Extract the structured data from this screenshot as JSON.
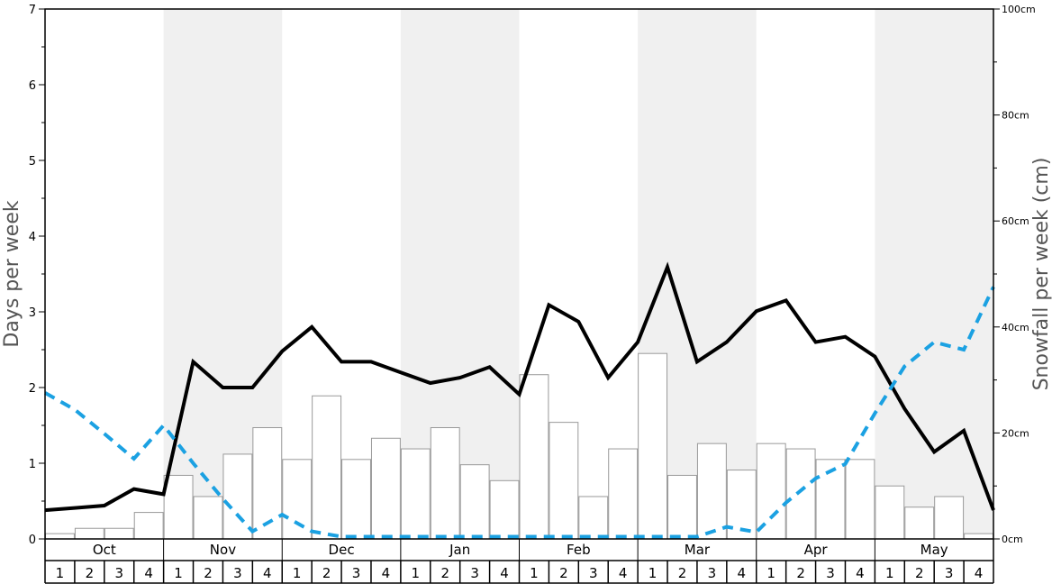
{
  "chart_data": {
    "type": "bar+line",
    "title": "",
    "ylabel": "Days per week",
    "ylabel_right": "Snowfall per week (cm)",
    "ylim": [
      0,
      7
    ],
    "ylim_right": [
      0,
      100
    ],
    "yticks": [
      "0",
      "1",
      "2",
      "3",
      "4",
      "5",
      "6",
      "7"
    ],
    "yticks_right": [
      "0cm",
      "20cm",
      "40cm",
      "60cm",
      "80cm",
      "100cm"
    ],
    "months": [
      "Oct",
      "Nov",
      "Dec",
      "Jan",
      "Feb",
      "Mar",
      "Apr",
      "May"
    ],
    "weeks": [
      "1",
      "2",
      "3",
      "4"
    ],
    "shaded_months": [
      "Nov",
      "Jan",
      "Mar",
      "May"
    ],
    "series": [
      {
        "kind": "bar",
        "axis": "right",
        "color": "#ffffff",
        "stroke": "#999999",
        "values": [
          1,
          2,
          2,
          5,
          12,
          8,
          16,
          21,
          15,
          27,
          15,
          19,
          17,
          21,
          14,
          11,
          31,
          22,
          8,
          17,
          35,
          12,
          18,
          13,
          18,
          17,
          15,
          15,
          10,
          6,
          8,
          1
        ]
      },
      {
        "kind": "line",
        "axis": "left",
        "color": "#000000",
        "style": "solid",
        "values": [
          0.38,
          0.41,
          0.44,
          0.66,
          0.59,
          2.34,
          2.0,
          2.0,
          2.48,
          2.8,
          2.34,
          2.34,
          2.2,
          2.06,
          2.13,
          2.27,
          1.91,
          3.09,
          2.87,
          2.13,
          2.6,
          3.59,
          2.34,
          2.6,
          3.01,
          3.15,
          2.6,
          2.67,
          2.41,
          1.72,
          1.15,
          1.43,
          0.38
        ]
      },
      {
        "kind": "line",
        "axis": "left",
        "color": "#1ba1e2",
        "style": "dashed",
        "values": [
          1.93,
          1.71,
          1.39,
          1.06,
          1.5,
          1.0,
          0.53,
          0.1,
          0.32,
          0.1,
          0.03,
          0.03,
          0.03,
          0.03,
          0.03,
          0.03,
          0.03,
          0.03,
          0.03,
          0.03,
          0.03,
          0.03,
          0.03,
          0.16,
          0.09,
          0.48,
          0.8,
          0.99,
          1.66,
          2.28,
          2.6,
          2.5,
          3.33
        ]
      }
    ]
  }
}
